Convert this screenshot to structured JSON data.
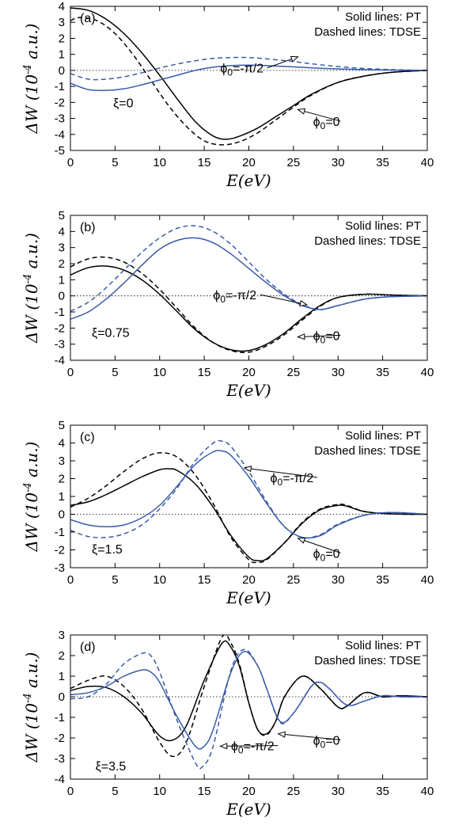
{
  "colors": {
    "black": "#000000",
    "blue": "#3a5ba9"
  },
  "chart_data": [
    {
      "type": "line",
      "panel": "(a)",
      "legend": [
        "Solid lines: PT",
        "Dashed lines: TDSE"
      ],
      "xlabel": "E(eV)",
      "ylabel": "ΔW (10^-4 a.u.)",
      "xlim": [
        0,
        40
      ],
      "ylim": [
        -5,
        4
      ],
      "xticks": [
        0,
        5,
        10,
        15,
        20,
        25,
        30,
        35,
        40
      ],
      "yticks": [
        -5,
        -4,
        -3,
        -2,
        -1,
        0,
        1,
        2,
        3,
        4
      ],
      "xi_label": "ξ=0",
      "phi_labels": [
        "ϕ₀=-π/2",
        "ϕ₀=0"
      ],
      "series": [
        {
          "name": "PT, ϕ₀=0",
          "color": "black",
          "dash": false,
          "x": [
            0,
            2,
            4,
            6,
            8,
            10,
            12,
            14,
            16,
            17.5,
            19,
            21,
            23,
            25,
            27,
            30,
            33,
            36,
            40
          ],
          "y": [
            3.9,
            3.75,
            3.2,
            2.3,
            1.1,
            -0.3,
            -1.8,
            -3.2,
            -4.1,
            -4.3,
            -4.1,
            -3.6,
            -2.9,
            -2.2,
            -1.5,
            -0.75,
            -0.35,
            -0.12,
            0
          ]
        },
        {
          "name": "TDSE, ϕ₀=0",
          "color": "black",
          "dash": true,
          "x": [
            0,
            1,
            3,
            5,
            7,
            9,
            11,
            13,
            15,
            17,
            19,
            21,
            23,
            25,
            27,
            30,
            33,
            36,
            40
          ],
          "y": [
            3.1,
            3.3,
            3.1,
            2.3,
            1.0,
            -0.6,
            -2.2,
            -3.5,
            -4.4,
            -4.65,
            -4.45,
            -3.9,
            -3.1,
            -2.3,
            -1.55,
            -0.75,
            -0.35,
            -0.12,
            0
          ]
        },
        {
          "name": "PT, ϕ₀=-π/2",
          "color": "blue",
          "dash": false,
          "x": [
            0,
            2,
            4,
            6,
            8,
            10,
            12,
            14,
            16,
            18,
            20,
            22,
            25,
            28,
            32,
            36,
            40
          ],
          "y": [
            -0.8,
            -1.2,
            -1.25,
            -1.15,
            -0.9,
            -0.6,
            -0.3,
            0.0,
            0.2,
            0.3,
            0.33,
            0.3,
            0.22,
            0.13,
            0.06,
            0.02,
            0
          ]
        },
        {
          "name": "TDSE, ϕ₀=-π/2",
          "color": "blue",
          "dash": true,
          "x": [
            0,
            2,
            4,
            6,
            8,
            10,
            12,
            14,
            16,
            18,
            20,
            22,
            25,
            28,
            32,
            36,
            40
          ],
          "y": [
            -0.2,
            -0.55,
            -0.55,
            -0.4,
            -0.15,
            0.15,
            0.4,
            0.6,
            0.75,
            0.8,
            0.8,
            0.72,
            0.55,
            0.35,
            0.15,
            0.05,
            0
          ]
        }
      ]
    },
    {
      "type": "line",
      "panel": "(b)",
      "legend": [
        "Solid lines: PT",
        "Dashed lines: TDSE"
      ],
      "xlabel": "E(eV)",
      "ylabel": "ΔW (10^-4 a.u.)",
      "xlim": [
        0,
        40
      ],
      "ylim": [
        -4,
        5
      ],
      "xticks": [
        0,
        5,
        10,
        15,
        20,
        25,
        30,
        35,
        40
      ],
      "yticks": [
        -4,
        -3,
        -2,
        -1,
        0,
        1,
        2,
        3,
        4,
        5
      ],
      "xi_label": "ξ=0.75",
      "phi_labels": [
        "ϕ₀=-π/2",
        "ϕ₀=0"
      ],
      "series": [
        {
          "name": "PT, ϕ₀=0",
          "color": "black",
          "dash": false,
          "x": [
            0,
            2,
            4,
            6,
            8,
            10,
            12,
            14,
            16,
            18,
            20,
            22,
            24,
            26,
            28,
            30,
            33,
            36,
            40
          ],
          "y": [
            1.3,
            1.75,
            1.85,
            1.6,
            1.0,
            0.1,
            -1.0,
            -2.1,
            -2.9,
            -3.35,
            -3.4,
            -3.0,
            -2.3,
            -1.4,
            -0.6,
            -0.1,
            0.1,
            0.05,
            0
          ]
        },
        {
          "name": "TDSE, ϕ₀=0",
          "color": "black",
          "dash": true,
          "x": [
            0,
            2,
            4,
            6,
            8,
            10,
            12,
            14,
            16,
            18,
            20,
            22,
            24,
            26,
            28,
            30,
            33,
            36,
            40
          ],
          "y": [
            1.8,
            2.3,
            2.4,
            2.1,
            1.4,
            0.4,
            -0.8,
            -2.0,
            -2.9,
            -3.4,
            -3.5,
            -3.1,
            -2.4,
            -1.5,
            -0.65,
            -0.1,
            0.1,
            0.05,
            0
          ]
        },
        {
          "name": "PT, ϕ₀=-π/2",
          "color": "blue",
          "dash": false,
          "x": [
            0,
            2,
            4,
            6,
            8,
            10,
            12,
            14,
            16,
            18,
            20,
            22,
            24,
            26,
            28,
            30,
            33,
            36,
            40
          ],
          "y": [
            -1.45,
            -1.0,
            -0.2,
            0.8,
            1.9,
            2.9,
            3.45,
            3.6,
            3.3,
            2.6,
            1.7,
            0.8,
            0.0,
            -0.6,
            -0.85,
            -0.6,
            -0.2,
            -0.05,
            0
          ]
        },
        {
          "name": "TDSE, ϕ₀=-π/2",
          "color": "blue",
          "dash": true,
          "x": [
            0,
            2,
            4,
            6,
            8,
            10,
            12,
            14,
            16,
            18,
            20,
            22,
            24,
            26,
            28,
            30,
            33,
            36,
            40
          ],
          "y": [
            -0.95,
            -0.4,
            0.5,
            1.6,
            2.7,
            3.6,
            4.2,
            4.35,
            4.0,
            3.2,
            2.1,
            1.0,
            0.1,
            -0.55,
            -0.85,
            -0.6,
            -0.2,
            -0.05,
            0
          ]
        }
      ]
    },
    {
      "type": "line",
      "panel": "(c)",
      "legend": [
        "Solid lines: PT",
        "Dashed lines: TDSE"
      ],
      "xlabel": "E(eV)",
      "ylabel": "ΔW (10^-4 a.u.)",
      "xlim": [
        0,
        40
      ],
      "ylim": [
        -3,
        5
      ],
      "xticks": [
        0,
        5,
        10,
        15,
        20,
        25,
        30,
        35,
        40
      ],
      "yticks": [
        -3,
        -2,
        -1,
        0,
        1,
        2,
        3,
        4,
        5
      ],
      "xi_label": "ξ=1.5",
      "phi_labels": [
        "ϕ₀=-π/2",
        "ϕ₀=0"
      ],
      "series": [
        {
          "name": "PT, ϕ₀=0",
          "color": "black",
          "dash": false,
          "x": [
            0,
            2,
            4,
            6,
            8,
            10,
            11,
            12,
            14,
            16,
            18,
            20,
            21,
            22,
            24,
            26,
            28,
            30,
            31,
            33,
            36,
            40
          ],
          "y": [
            0.5,
            0.7,
            1.1,
            1.6,
            2.1,
            2.5,
            2.55,
            2.45,
            1.7,
            0.4,
            -1.2,
            -2.4,
            -2.6,
            -2.5,
            -1.6,
            -0.5,
            0.25,
            0.5,
            0.45,
            0.15,
            0.02,
            0
          ]
        },
        {
          "name": "TDSE, ϕ₀=0",
          "color": "black",
          "dash": true,
          "x": [
            0,
            2,
            4,
            6,
            8,
            10,
            12,
            14,
            16,
            18,
            20,
            21,
            22,
            24,
            26,
            28,
            30,
            31,
            33,
            36,
            40
          ],
          "y": [
            0.4,
            0.9,
            1.6,
            2.4,
            3.1,
            3.45,
            3.2,
            2.2,
            0.6,
            -1.3,
            -2.55,
            -2.7,
            -2.55,
            -1.6,
            -0.45,
            0.3,
            0.55,
            0.5,
            0.15,
            0.02,
            0
          ]
        },
        {
          "name": "PT, ϕ₀=-π/2",
          "color": "blue",
          "dash": false,
          "x": [
            0,
            2,
            4,
            6,
            8,
            10,
            12,
            14,
            16,
            17,
            18,
            20,
            22,
            24,
            26,
            28,
            30,
            33,
            36,
            40
          ],
          "y": [
            -0.3,
            -0.6,
            -0.7,
            -0.6,
            -0.2,
            0.5,
            1.6,
            2.8,
            3.5,
            3.55,
            3.3,
            2.1,
            0.6,
            -0.7,
            -1.3,
            -1.2,
            -0.6,
            -0.05,
            0.1,
            0
          ]
        },
        {
          "name": "TDSE, ϕ₀=-π/2",
          "color": "blue",
          "dash": true,
          "x": [
            0,
            2,
            4,
            6,
            8,
            10,
            12,
            14,
            16,
            17,
            18,
            20,
            22,
            24,
            26,
            28,
            30,
            33,
            36,
            40
          ],
          "y": [
            -0.9,
            -1.25,
            -1.3,
            -1.1,
            -0.6,
            0.3,
            1.5,
            3.0,
            4.0,
            4.1,
            3.8,
            2.4,
            0.7,
            -0.7,
            -1.3,
            -1.15,
            -0.55,
            -0.05,
            0.1,
            0
          ]
        }
      ]
    },
    {
      "type": "line",
      "panel": "(d)",
      "legend": [
        "Solid lines: PT",
        "Dashed lines: TDSE"
      ],
      "xlabel": "E(eV)",
      "ylabel": "ΔW (10^-4 a.u.)",
      "xlim": [
        0,
        40
      ],
      "ylim": [
        -4,
        3
      ],
      "xticks": [
        0,
        5,
        10,
        15,
        20,
        25,
        30,
        35,
        40
      ],
      "yticks": [
        -4,
        -3,
        -2,
        -1,
        0,
        1,
        2,
        3
      ],
      "xi_label": "ξ=3.5",
      "phi_labels": [
        "ϕ₀=-π/2",
        "ϕ₀=0"
      ],
      "series": [
        {
          "name": "PT, ϕ₀=0",
          "color": "black",
          "dash": false,
          "x": [
            0,
            2,
            4,
            6,
            8,
            10,
            11.5,
            13,
            15,
            17,
            18,
            19,
            20,
            21,
            22,
            23,
            24,
            26,
            28,
            30,
            31,
            33,
            35,
            37,
            40
          ],
          "y": [
            0.3,
            0.5,
            0.45,
            0.0,
            -0.8,
            -1.9,
            -2.1,
            -1.4,
            0.8,
            2.6,
            2.4,
            1.4,
            -0.3,
            -1.6,
            -1.8,
            -1.2,
            0.0,
            1.0,
            0.4,
            -0.5,
            -0.45,
            0.2,
            0.0,
            0.05,
            0
          ]
        },
        {
          "name": "TDSE, ϕ₀=0",
          "color": "black",
          "dash": true,
          "x": [
            0,
            2,
            4,
            6,
            8,
            10,
            11.5,
            13,
            15,
            17,
            18,
            19,
            20,
            21,
            22,
            23,
            24,
            26,
            28,
            30,
            31,
            33,
            35,
            37,
            40
          ],
          "y": [
            0.4,
            0.8,
            1.0,
            0.5,
            -0.6,
            -2.2,
            -2.9,
            -2.2,
            0.5,
            2.9,
            2.6,
            1.5,
            -0.3,
            -1.6,
            -1.85,
            -1.2,
            0.0,
            1.0,
            0.4,
            -0.5,
            -0.45,
            0.2,
            0.0,
            0.05,
            0
          ]
        },
        {
          "name": "PT, ϕ₀=-π/2",
          "color": "blue",
          "dash": false,
          "x": [
            0,
            2,
            4,
            6,
            8,
            9,
            10,
            12,
            14,
            15,
            16,
            18,
            19.5,
            21,
            22,
            23.5,
            25,
            27,
            28,
            29,
            31,
            33,
            35,
            37,
            40
          ],
          "y": [
            0.1,
            0.2,
            0.5,
            1.0,
            1.3,
            1.2,
            0.7,
            -1.0,
            -2.4,
            -2.4,
            -1.6,
            1.2,
            2.2,
            1.5,
            0.4,
            -1.2,
            -0.8,
            0.5,
            0.7,
            0.4,
            -0.4,
            -0.2,
            0.05,
            0.0,
            0
          ]
        },
        {
          "name": "TDSE, ϕ₀=-π/2",
          "color": "blue",
          "dash": true,
          "x": [
            0,
            2,
            4,
            6,
            8,
            9,
            10,
            12,
            14,
            14.8,
            16,
            18,
            19.5,
            21,
            22,
            23.5,
            25,
            27,
            28,
            29,
            31,
            33,
            35,
            37,
            40
          ],
          "y": [
            -0.1,
            0.0,
            0.6,
            1.6,
            2.1,
            2.0,
            1.2,
            -1.2,
            -3.2,
            -3.4,
            -2.4,
            1.3,
            2.3,
            1.5,
            0.4,
            -1.25,
            -0.8,
            0.5,
            0.7,
            0.4,
            -0.4,
            -0.2,
            0.05,
            0.0,
            0
          ]
        }
      ]
    }
  ]
}
